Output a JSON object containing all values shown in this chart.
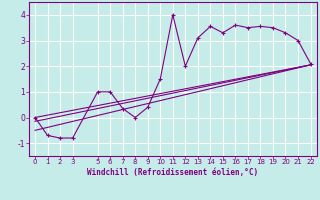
{
  "xlabel": "Windchill (Refroidissement éolien,°C)",
  "bg_color": "#c5ece8",
  "grid_color": "#ffffff",
  "line_color": "#800080",
  "xlim": [
    -0.5,
    22.5
  ],
  "ylim": [
    -1.5,
    4.5
  ],
  "xticks": [
    0,
    1,
    2,
    3,
    5,
    6,
    7,
    8,
    9,
    10,
    11,
    12,
    13,
    14,
    15,
    16,
    17,
    18,
    19,
    20,
    21,
    22
  ],
  "yticks": [
    -1,
    0,
    1,
    2,
    3,
    4
  ],
  "scatter_x": [
    0,
    1,
    2,
    3,
    5,
    6,
    7,
    8,
    9,
    10,
    11,
    12,
    13,
    14,
    15,
    16,
    17,
    18,
    19,
    20,
    21,
    22
  ],
  "scatter_y": [
    0.0,
    -0.7,
    -0.8,
    -0.8,
    1.0,
    1.0,
    0.35,
    0.0,
    0.4,
    1.5,
    4.0,
    2.0,
    3.1,
    3.55,
    3.3,
    3.6,
    3.5,
    3.55,
    3.5,
    3.3,
    3.0,
    2.1
  ],
  "line1_x": [
    0,
    22
  ],
  "line1_y": [
    -0.15,
    2.05
  ],
  "line2_x": [
    0,
    22
  ],
  "line2_y": [
    -0.5,
    2.05
  ],
  "line3_x": [
    0,
    22
  ],
  "line3_y": [
    0.0,
    2.05
  ]
}
